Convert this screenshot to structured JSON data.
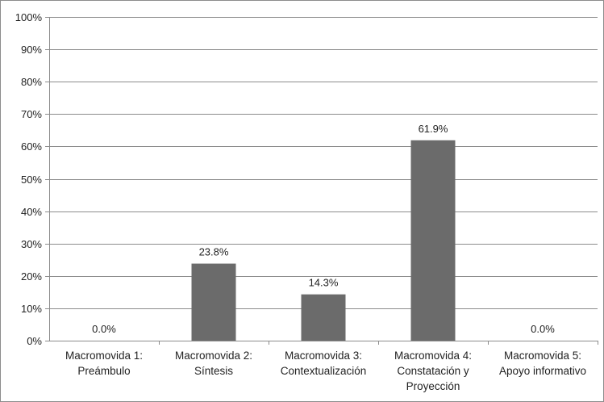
{
  "chart_data": {
    "type": "bar",
    "title": "",
    "xlabel": "",
    "ylabel": "",
    "ylim": [
      0,
      100
    ],
    "y_ticks": [
      "0%",
      "10%",
      "20%",
      "30%",
      "40%",
      "50%",
      "60%",
      "70%",
      "80%",
      "90%",
      "100%"
    ],
    "grid": true,
    "legend": "none",
    "categories": [
      [
        "Macromovida 1:",
        "Preámbulo"
      ],
      [
        "Macromovida 2:",
        "Síntesis"
      ],
      [
        "Macromovida 3:",
        "Contextualización"
      ],
      [
        "Macromovida 4:",
        "Constatación y",
        "Proyección"
      ],
      [
        "Macromovida 5:",
        "Apoyo informativo"
      ]
    ],
    "values": [
      0.0,
      23.8,
      14.3,
      61.9,
      0.0
    ],
    "data_labels": [
      "0.0%",
      "23.8%",
      "14.3%",
      "61.9%",
      "0.0%"
    ],
    "colors": {
      "bar": "#6b6b6b",
      "grid": "#8c8c8c",
      "axis": "#8c8c8c"
    }
  }
}
